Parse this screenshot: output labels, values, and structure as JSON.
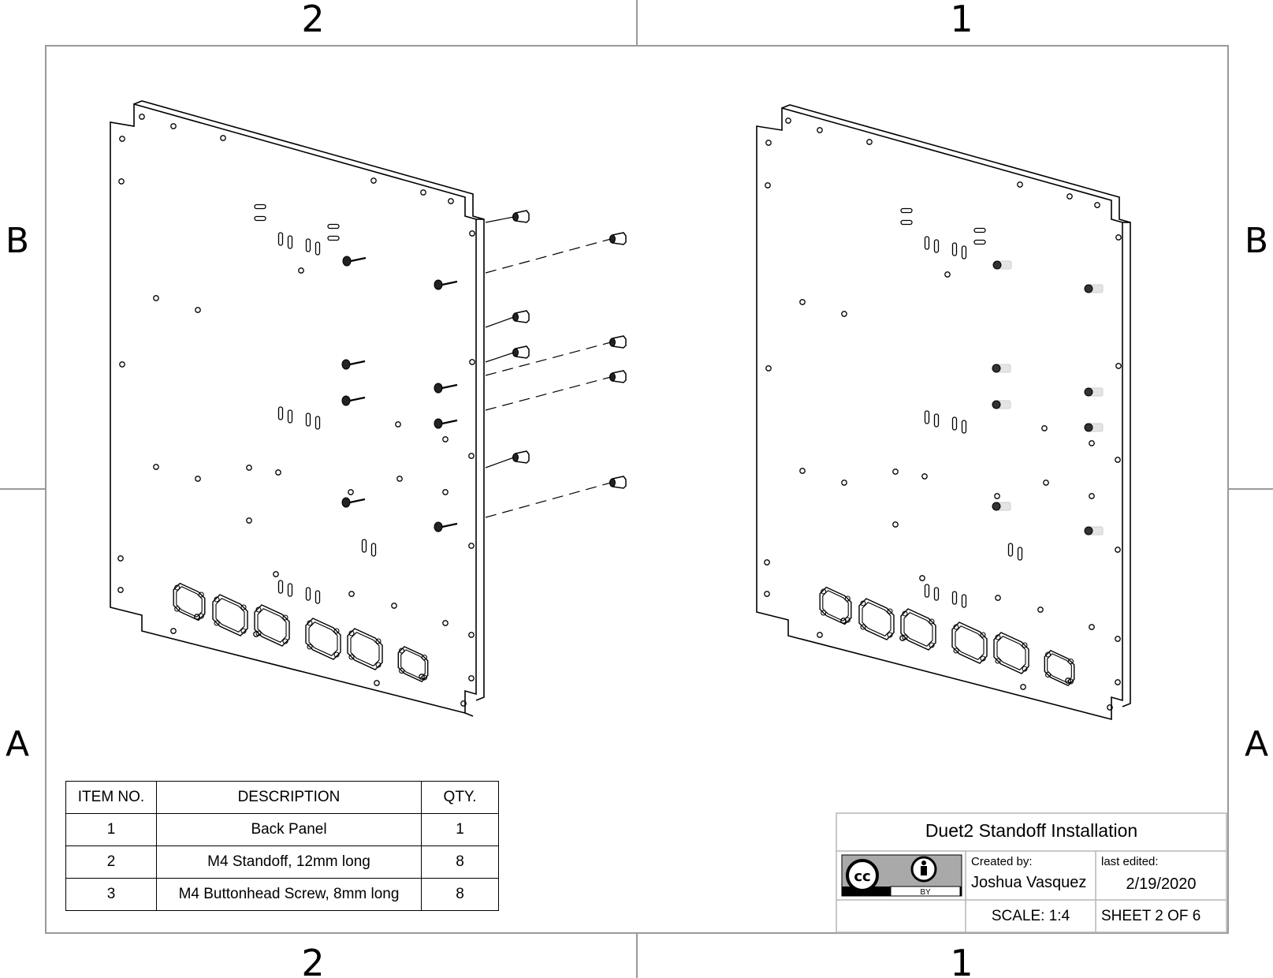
{
  "zones": {
    "top": [
      "2",
      "1"
    ],
    "bottom": [
      "2",
      "1"
    ],
    "left": [
      "B",
      "A"
    ],
    "right": [
      "B",
      "A"
    ]
  },
  "bom": {
    "headers": [
      "ITEM NO.",
      "DESCRIPTION",
      "QTY."
    ],
    "rows": [
      {
        "item": "1",
        "description": "Back Panel",
        "qty": "1"
      },
      {
        "item": "2",
        "description": "M4 Standoff, 12mm long",
        "qty": "8"
      },
      {
        "item": "3",
        "description": "M4 Buttonhead Screw, 8mm long",
        "qty": "8"
      }
    ]
  },
  "title_block": {
    "title": "Duet2 Standoff Installation",
    "created_by_label": "Created by:",
    "author": "Joshua Vasquez",
    "last_edited_label": "last edited:",
    "date": "2/19/2020",
    "scale": "SCALE: 1:4",
    "sheet": "SHEET 2 OF 6",
    "license_logo": {
      "name": "cc-by-icon",
      "text": "BY"
    }
  },
  "views": [
    {
      "name": "exploded-view",
      "state": "standoffs exploded"
    },
    {
      "name": "assembled-view",
      "state": "standoffs installed"
    }
  ]
}
